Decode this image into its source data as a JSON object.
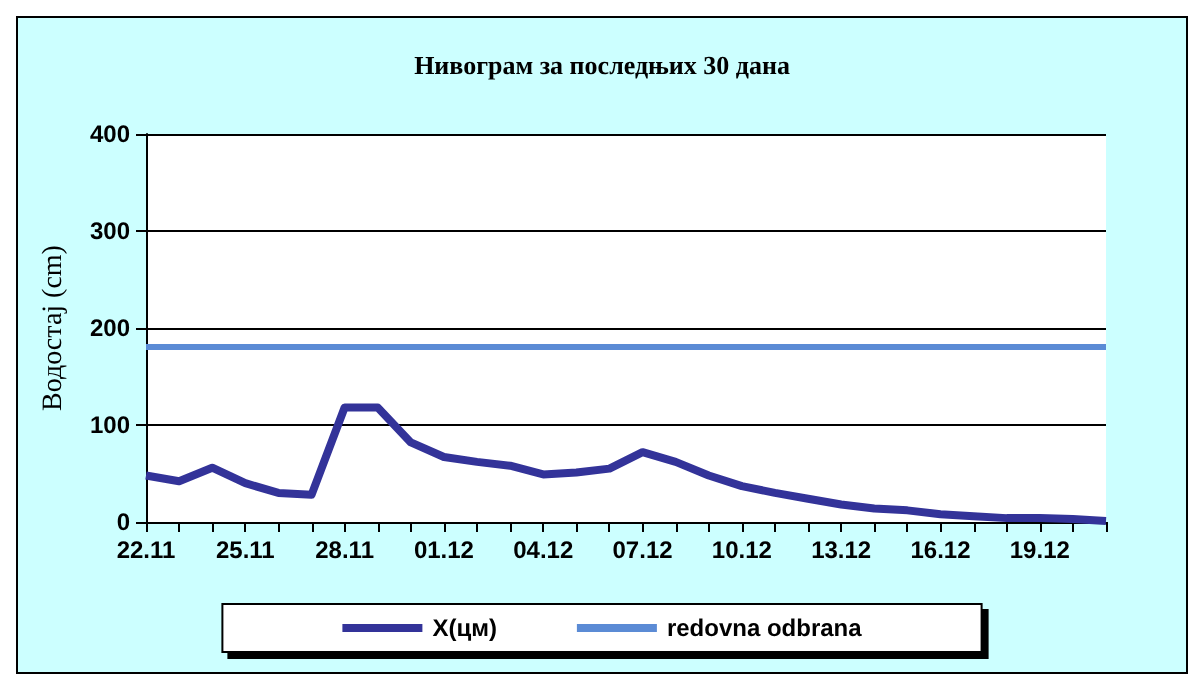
{
  "chart_data": {
    "type": "line",
    "title": "Нивограм за последњих 30 дана",
    "ylabel": "Водостај (cm)",
    "categories": [
      "22.11",
      null,
      null,
      "25.11",
      null,
      null,
      "28.11",
      null,
      null,
      "01.12",
      null,
      null,
      "04.12",
      null,
      null,
      "07.12",
      null,
      null,
      "10.12",
      null,
      null,
      "13.12",
      null,
      null,
      "16.12",
      null,
      null,
      "19.12",
      null,
      null
    ],
    "series": [
      {
        "name": "X(цм)",
        "color": "#333399",
        "values": [
          48,
          42,
          56,
          40,
          30,
          28,
          118,
          118,
          82,
          67,
          62,
          58,
          49,
          51,
          55,
          72,
          62,
          48,
          37,
          30,
          24,
          18,
          14,
          12,
          8,
          6,
          4,
          4,
          3,
          1
        ]
      }
    ],
    "ylim": [
      0,
      400
    ],
    "yticks": [
      0,
      100,
      200,
      300,
      400
    ],
    "grid": "y",
    "legend": "bottom",
    "marker": "none",
    "line_style": "solid",
    "ref_lines": [
      {
        "axis": "y",
        "value": 180,
        "label": "redovna odbrana",
        "color": "#5b8bd5"
      }
    ]
  }
}
